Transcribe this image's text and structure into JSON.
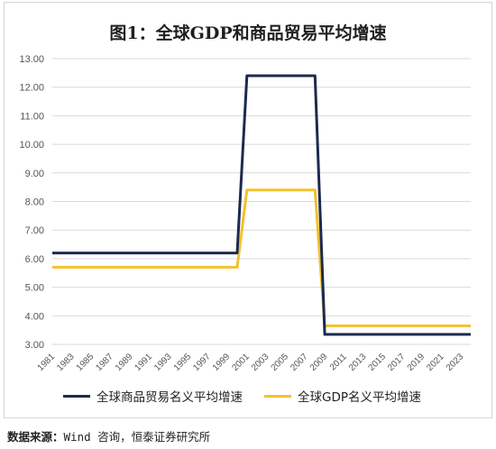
{
  "chart_data": {
    "type": "line",
    "title": "图1：全球GDP和商品贸易平均增速",
    "xlabel": "",
    "ylabel": "",
    "x": [
      1981,
      1982,
      1983,
      1984,
      1985,
      1986,
      1987,
      1988,
      1989,
      1990,
      1991,
      1992,
      1993,
      1994,
      1995,
      1996,
      1997,
      1998,
      1999,
      2000,
      2001,
      2002,
      2003,
      2004,
      2005,
      2006,
      2007,
      2008,
      2009,
      2010,
      2011,
      2012,
      2013,
      2014,
      2015,
      2016,
      2017,
      2018,
      2019,
      2020,
      2021,
      2022,
      2023,
      2024
    ],
    "x_tick_labels": [
      "1981",
      "1983",
      "1985",
      "1987",
      "1989",
      "1991",
      "1993",
      "1995",
      "1997",
      "1999",
      "2001",
      "2003",
      "2005",
      "2007",
      "2009",
      "2011",
      "2013",
      "2015",
      "2017",
      "2019",
      "2021",
      "2023"
    ],
    "ylim": [
      3.0,
      13.0
    ],
    "y_tick_labels": [
      "3.00",
      "4.00",
      "5.00",
      "6.00",
      "7.00",
      "8.00",
      "9.00",
      "10.00",
      "11.00",
      "12.00",
      "13.00"
    ],
    "grid": true,
    "legend_position": "bottom",
    "series": [
      {
        "name": "全球商品贸易名义平均增速",
        "color": "#1b2a4e",
        "values": [
          6.2,
          6.2,
          6.2,
          6.2,
          6.2,
          6.2,
          6.2,
          6.2,
          6.2,
          6.2,
          6.2,
          6.2,
          6.2,
          6.2,
          6.2,
          6.2,
          6.2,
          6.2,
          6.2,
          6.2,
          12.4,
          12.4,
          12.4,
          12.4,
          12.4,
          12.4,
          12.4,
          12.4,
          3.35,
          3.35,
          3.35,
          3.35,
          3.35,
          3.35,
          3.35,
          3.35,
          3.35,
          3.35,
          3.35,
          3.35,
          3.35,
          3.35,
          3.35,
          3.35
        ]
      },
      {
        "name": "全球GDP名义平均增速",
        "color": "#f2c12e",
        "values": [
          5.7,
          5.7,
          5.7,
          5.7,
          5.7,
          5.7,
          5.7,
          5.7,
          5.7,
          5.7,
          5.7,
          5.7,
          5.7,
          5.7,
          5.7,
          5.7,
          5.7,
          5.7,
          5.7,
          5.7,
          8.4,
          8.4,
          8.4,
          8.4,
          8.4,
          8.4,
          8.4,
          8.4,
          3.65,
          3.65,
          3.65,
          3.65,
          3.65,
          3.65,
          3.65,
          3.65,
          3.65,
          3.65,
          3.65,
          3.65,
          3.65,
          3.65,
          3.65,
          3.65
        ]
      }
    ]
  },
  "source": {
    "label": "数据来源：",
    "text": "Wind 咨询，恒泰证券研究所"
  }
}
